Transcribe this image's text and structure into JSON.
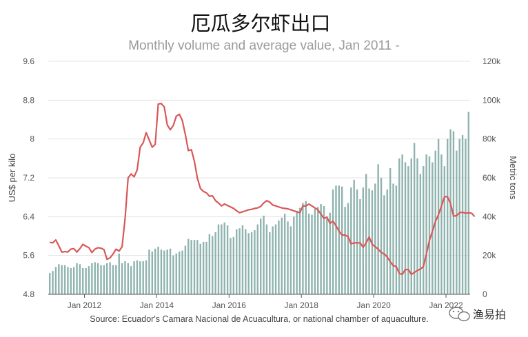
{
  "chart_data": {
    "type": "bar+line",
    "title": "厄瓜多尔虾出口",
    "subtitle": "Monthly volume and average value, Jan 2011 -",
    "ylabel_left": "US$ per kilo",
    "ylabel_right": "Metric tons",
    "source": "Source: Ecuador's Camara Nacional de Acuacultura, or national chamber of aquaculture.",
    "left_axis": {
      "min": 4.8,
      "max": 9.6,
      "ticks": [
        "4.8",
        "5.6",
        "6.4",
        "7.2",
        "8",
        "8.8",
        "9.6"
      ]
    },
    "right_axis": {
      "min": 0,
      "max": 120000,
      "ticks": [
        "0",
        "20k",
        "40k",
        "60k",
        "80k",
        "100k",
        "120k"
      ]
    },
    "x_ticks": [
      {
        "label": "Jan 2012",
        "index": 12
      },
      {
        "label": "Jan 2014",
        "index": 36
      },
      {
        "label": "Jan 2016",
        "index": 60
      },
      {
        "label": "Jan 2018",
        "index": 84
      },
      {
        "label": "Jan 2020",
        "index": 108
      },
      {
        "label": "Jan 2022",
        "index": 132
      }
    ],
    "grid": true,
    "series": [
      {
        "name": "Metric tons",
        "type": "bar",
        "axis": "right",
        "color": "#8fb3ae",
        "values": [
          11000,
          12000,
          14000,
          15500,
          15000,
          15000,
          14000,
          13500,
          14000,
          16000,
          15500,
          13500,
          13500,
          14500,
          16000,
          16500,
          16000,
          15000,
          15000,
          16000,
          16500,
          15000,
          15000,
          21000,
          16000,
          17000,
          16000,
          14500,
          17000,
          17500,
          17000,
          17000,
          17500,
          23000,
          22000,
          23500,
          24500,
          23000,
          22500,
          23000,
          23500,
          20000,
          21000,
          22000,
          22500,
          25000,
          28500,
          28000,
          28000,
          28000,
          26000,
          27000,
          27000,
          31000,
          30000,
          32000,
          36000,
          36000,
          37000,
          35500,
          29000,
          29500,
          33500,
          34000,
          35500,
          33500,
          31500,
          32000,
          33000,
          36000,
          39000,
          40500,
          36000,
          32000,
          35000,
          36000,
          38000,
          39500,
          41500,
          37500,
          35000,
          40000,
          43000,
          44500,
          47000,
          48000,
          41500,
          41000,
          44000,
          45000,
          46500,
          45500,
          39000,
          42000,
          54000,
          56000,
          56000,
          55500,
          45000,
          47000,
          55000,
          59000,
          54000,
          49000,
          55000,
          62000,
          54500,
          53500,
          57000,
          67000,
          60000,
          51000,
          54000,
          65000,
          57000,
          56000,
          70000,
          72000,
          68000,
          66000,
          70000,
          78000,
          70000,
          62000,
          66000,
          72000,
          71000,
          68000,
          74000,
          80000,
          72000,
          66000,
          80000,
          85000,
          84000,
          74000,
          80000,
          82000,
          80000,
          94000
        ]
      },
      {
        "name": "US$ per kilo",
        "type": "line",
        "axis": "left",
        "color": "#d95757",
        "values": [
          5.87,
          5.86,
          5.92,
          5.8,
          5.67,
          5.68,
          5.67,
          5.73,
          5.74,
          5.67,
          5.74,
          5.83,
          5.79,
          5.76,
          5.66,
          5.73,
          5.76,
          5.75,
          5.72,
          5.52,
          5.55,
          5.63,
          5.73,
          5.69,
          5.78,
          6.36,
          7.2,
          7.28,
          7.22,
          7.36,
          7.83,
          7.92,
          8.13,
          7.98,
          7.83,
          7.89,
          8.72,
          8.73,
          8.66,
          8.29,
          8.19,
          8.28,
          8.47,
          8.51,
          8.38,
          8.09,
          7.76,
          7.78,
          7.54,
          7.19,
          6.98,
          6.92,
          6.89,
          6.82,
          6.83,
          6.73,
          6.68,
          6.62,
          6.66,
          6.63,
          6.6,
          6.57,
          6.52,
          6.48,
          6.5,
          6.52,
          6.54,
          6.55,
          6.57,
          6.58,
          6.61,
          6.68,
          6.73,
          6.7,
          6.64,
          6.62,
          6.6,
          6.58,
          6.57,
          6.56,
          6.54,
          6.52,
          6.5,
          6.48,
          6.62,
          6.62,
          6.66,
          6.62,
          6.58,
          6.54,
          6.45,
          6.36,
          6.39,
          6.26,
          6.31,
          6.21,
          6.1,
          6.02,
          6.02,
          5.99,
          5.84,
          5.86,
          5.86,
          5.86,
          5.77,
          5.86,
          5.98,
          5.83,
          5.78,
          5.73,
          5.66,
          5.63,
          5.57,
          5.47,
          5.39,
          5.37,
          5.23,
          5.21,
          5.31,
          5.31,
          5.21,
          5.25,
          5.29,
          5.32,
          5.37,
          5.63,
          5.91,
          6.1,
          6.3,
          6.44,
          6.62,
          6.81,
          6.81,
          6.67,
          6.41,
          6.42,
          6.48,
          6.49,
          6.47,
          6.48,
          6.47,
          6.4
        ]
      }
    ]
  },
  "watermark": {
    "text": "渔易拍"
  }
}
